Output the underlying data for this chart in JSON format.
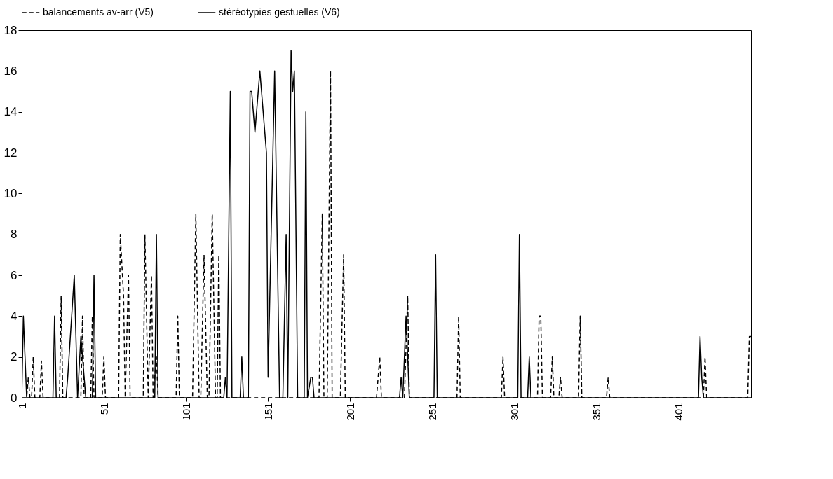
{
  "chart_data": {
    "type": "line",
    "xlim": [
      1,
      445
    ],
    "xticks": [
      1,
      51,
      101,
      151,
      201,
      251,
      301,
      351,
      401
    ],
    "ylim": [
      0,
      18
    ],
    "yticks": [
      0,
      2,
      4,
      6,
      8,
      10,
      12,
      14,
      16,
      18
    ],
    "grid": false,
    "legend": "top",
    "marker": "none",
    "series": [
      {
        "name": "balancements av-arr (V5)",
        "color": "#000000",
        "line_style": "dashed",
        "x": [
          1,
          4,
          5,
          6,
          7,
          8,
          9,
          12,
          13,
          14,
          24,
          25,
          26,
          37,
          38,
          39,
          43,
          44,
          45,
          50,
          51,
          52,
          60,
          61,
          63,
          64,
          66,
          67,
          75,
          76,
          78,
          80,
          81,
          83,
          84,
          95,
          96,
          97,
          105,
          107,
          109,
          110,
          112,
          114,
          115,
          117,
          119,
          120,
          121,
          122,
          182,
          184,
          185,
          187,
          189,
          190,
          195,
          197,
          198,
          217,
          219,
          220,
          234,
          236,
          237,
          266,
          267,
          268,
          293,
          294,
          295,
          315,
          316,
          317,
          318,
          323,
          324,
          325,
          328,
          329,
          330,
          340,
          341,
          342,
          357,
          358,
          359,
          416,
          417,
          418,
          443,
          444,
          445
        ],
        "values": [
          0,
          0,
          1,
          0,
          0,
          2,
          0,
          0,
          1.8,
          0,
          0,
          5,
          0,
          0,
          4,
          0,
          0,
          4,
          0,
          0,
          2,
          0,
          0,
          8,
          5,
          0,
          6,
          0,
          0,
          8,
          0,
          6,
          0,
          2,
          0,
          0,
          4,
          0,
          0,
          9,
          0,
          0,
          7,
          0,
          0,
          9,
          0,
          0,
          7,
          0,
          0,
          9,
          0,
          0,
          16,
          0,
          0,
          7,
          0,
          0,
          2,
          0,
          0,
          5,
          0,
          0,
          4,
          0,
          0,
          2,
          0,
          0,
          4,
          4,
          0,
          0,
          2,
          0,
          0,
          1,
          0,
          0,
          4,
          0,
          0,
          1,
          0,
          0,
          2,
          0,
          0,
          3,
          3
        ]
      },
      {
        "name": "stéréotypies gestuelles (V6)",
        "color": "#000000",
        "line_style": "solid",
        "x": [
          1,
          2,
          4,
          20,
          21,
          22,
          28,
          29,
          33,
          35,
          37,
          40,
          44,
          45,
          46,
          82,
          83,
          84,
          124,
          125,
          126,
          128,
          129,
          134,
          135,
          136,
          139,
          140,
          141,
          143,
          146,
          150,
          151,
          155,
          158,
          160,
          162,
          163,
          165,
          166,
          167,
          169,
          173,
          174,
          175,
          177,
          178,
          179,
          231,
          232,
          233,
          235,
          237,
          252,
          253,
          254,
          303,
          304,
          305,
          309,
          310,
          311,
          413,
          414,
          415,
          416,
          445
        ],
        "values": [
          0,
          4,
          0,
          0,
          4,
          0,
          0,
          1,
          6,
          0,
          3,
          0,
          0,
          6,
          0,
          0,
          8,
          0,
          0,
          1,
          0,
          15,
          0,
          0,
          2,
          0,
          0,
          15,
          15,
          13,
          16,
          12,
          1,
          16,
          0,
          0,
          8,
          0,
          17,
          15,
          16,
          0,
          0,
          14,
          0,
          1,
          1,
          0,
          0,
          1,
          0,
          4,
          0,
          0,
          7,
          0,
          0,
          8,
          0,
          0,
          2,
          0,
          0,
          3,
          1,
          0,
          0
        ]
      }
    ]
  }
}
